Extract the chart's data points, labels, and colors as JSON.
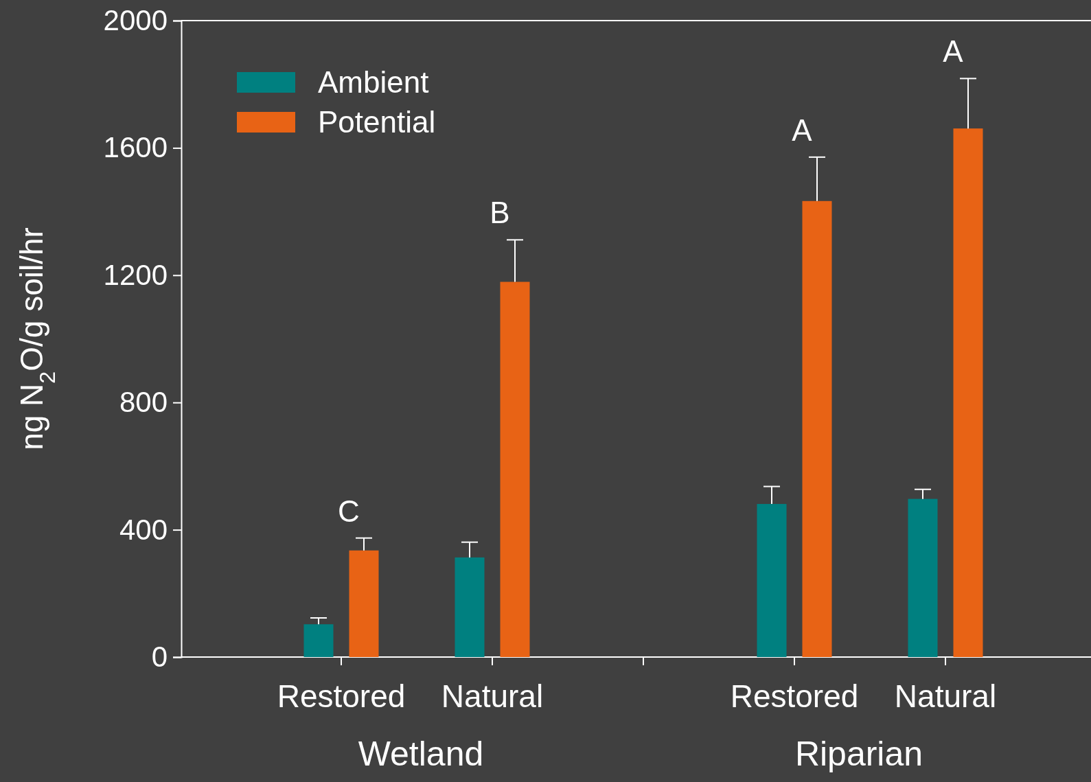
{
  "chart_data": {
    "type": "bar",
    "ylabel": "ng N$_{2}$O/g soil/hr",
    "categories": [
      "Restored",
      "Natural",
      null,
      "Restored",
      "Natural"
    ],
    "series": [
      {
        "name": "Ambient",
        "color": "#008080",
        "values": [
          103,
          313,
          null,
          481,
          497
        ],
        "errors": [
          [
            103,
            123
          ],
          [
            313,
            361
          ],
          null,
          [
            481,
            536
          ],
          [
            497,
            527
          ]
        ]
      },
      {
        "name": "Potential",
        "color": "#e86315",
        "values": [
          335,
          1179,
          null,
          1433,
          1661
        ],
        "errors": [
          [
            335,
            374
          ],
          [
            1179,
            1311
          ],
          null,
          [
            1433,
            1571
          ],
          [
            1661,
            1818
          ]
        ],
        "value_labels": [
          "C",
          "B",
          null,
          "A",
          "A"
        ]
      }
    ],
    "ylim": [
      0,
      2000
    ],
    "yticks": [
      0,
      400,
      800,
      1200,
      1600,
      2000
    ],
    "grid": false,
    "legend": "top left",
    "annotations": [
      "Wetland",
      "Riparian"
    ]
  }
}
